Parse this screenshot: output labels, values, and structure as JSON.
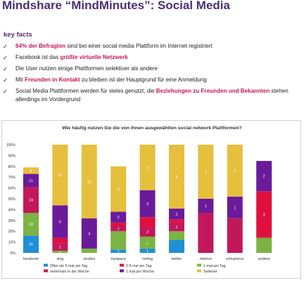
{
  "slide": {
    "title": "Mindshare “MindMinutes”: Social Media",
    "facts_heading": "key facts",
    "facts": [
      {
        "parts": [
          {
            "t": "64% der Befragten",
            "hl": true
          },
          {
            "t": " sind bei einer social media Plattform im Internet registriert",
            "hl": false
          }
        ]
      },
      {
        "parts": [
          {
            "t": "Facebook ist das ",
            "hl": false
          },
          {
            "t": "größte virtuelle Netzwerk",
            "hl": true
          }
        ]
      },
      {
        "parts": [
          {
            "t": "Die User nutzen einige Plattformen selektiver als andere",
            "hl": false
          }
        ]
      },
      {
        "parts": [
          {
            "t": "Mit ",
            "hl": false
          },
          {
            "t": "Freunden in Kontakt",
            "hl": true
          },
          {
            "t": " zu bleiben ist der Hauptgrund für eine Anmeldung",
            "hl": false
          }
        ]
      },
      {
        "parts": [
          {
            "t": "Social Media Plattformen werden für vieles genutzt, die ",
            "hl": false
          },
          {
            "t": "Beziehungen zu Freunden und Bekannten",
            "hl": true
          },
          {
            "t": " stehen allerdings im Vordergrund",
            "hl": false
          }
        ]
      }
    ],
    "check_glyph": "✓"
  },
  "chart_data": {
    "type": "bar",
    "stacked": true,
    "title": "Wie häufig nutzen Sie die von Ihnen ausgewählten social network Plattformen?",
    "categories": [
      "facebook",
      "xing",
      "studivz",
      "myspace",
      "netlog",
      "twitter",
      "meinvz",
      "schuelervz",
      "andere"
    ],
    "ylim": [
      0,
      100
    ],
    "yticks": [
      "0%",
      "10%",
      "20%",
      "30%",
      "40%",
      "50%",
      "60%",
      "70%",
      "80%",
      "90%",
      "100%"
    ],
    "grid": false,
    "legend_position": "bottom",
    "series": [
      {
        "name": "Öfter als 5 mal am Tag",
        "color": "#1f8fd6",
        "values": [
          16,
          0,
          0,
          3,
          4,
          12,
          0,
          0,
          0
        ],
        "labels": [
          "16",
          "",
          "",
          "1",
          "1",
          "",
          "",
          "",
          ""
        ]
      },
      {
        "name": "mehrmals in der Woche",
        "color": "#c2185b",
        "values": [
          24,
          7,
          0,
          5,
          9,
          8,
          37,
          32,
          0
        ],
        "labels": [
          "24",
          "1",
          "",
          "1",
          "2",
          "1",
          "",
          "",
          ""
        ]
      },
      {
        "name": "2-5 mal am Tag",
        "color": "#e0103e",
        "values": [
          0,
          5,
          0,
          3,
          9,
          3,
          0,
          0,
          43
        ],
        "labels": [
          "",
          "",
          "",
          "",
          "",
          "",
          "",
          "",
          "3"
        ]
      },
      {
        "name": "1 mal pro Woche",
        "color": "#6a1b9a",
        "values": [
          12,
          30,
          28,
          10,
          25,
          10,
          13,
          20,
          28
        ],
        "labels": [
          "11",
          "6",
          "4",
          "2",
          "3",
          "1",
          "1",
          "1",
          "2"
        ]
      },
      {
        "name": "1 mal am Tag",
        "color": "#7cb342",
        "values": [
          21,
          2,
          4,
          17,
          11,
          8,
          0,
          0,
          14
        ],
        "labels": [
          "22",
          "1",
          "",
          "",
          "1",
          "",
          "",
          "",
          ""
        ]
      },
      {
        "name": "Seltener",
        "color": "#e6bf3c",
        "values": [
          6,
          56,
          68,
          42,
          42,
          59,
          50,
          48,
          0
        ],
        "labels": [
          "8",
          "13",
          "11",
          "5",
          "3",
          "4",
          "3",
          "2",
          ""
        ]
      }
    ],
    "stack_order": [
      "Öfter als 5 mal am Tag",
      "1 mal am Tag",
      "mehrmals in der Woche",
      "2-5 mal am Tag",
      "1 mal pro Woche",
      "Seltener"
    ]
  }
}
